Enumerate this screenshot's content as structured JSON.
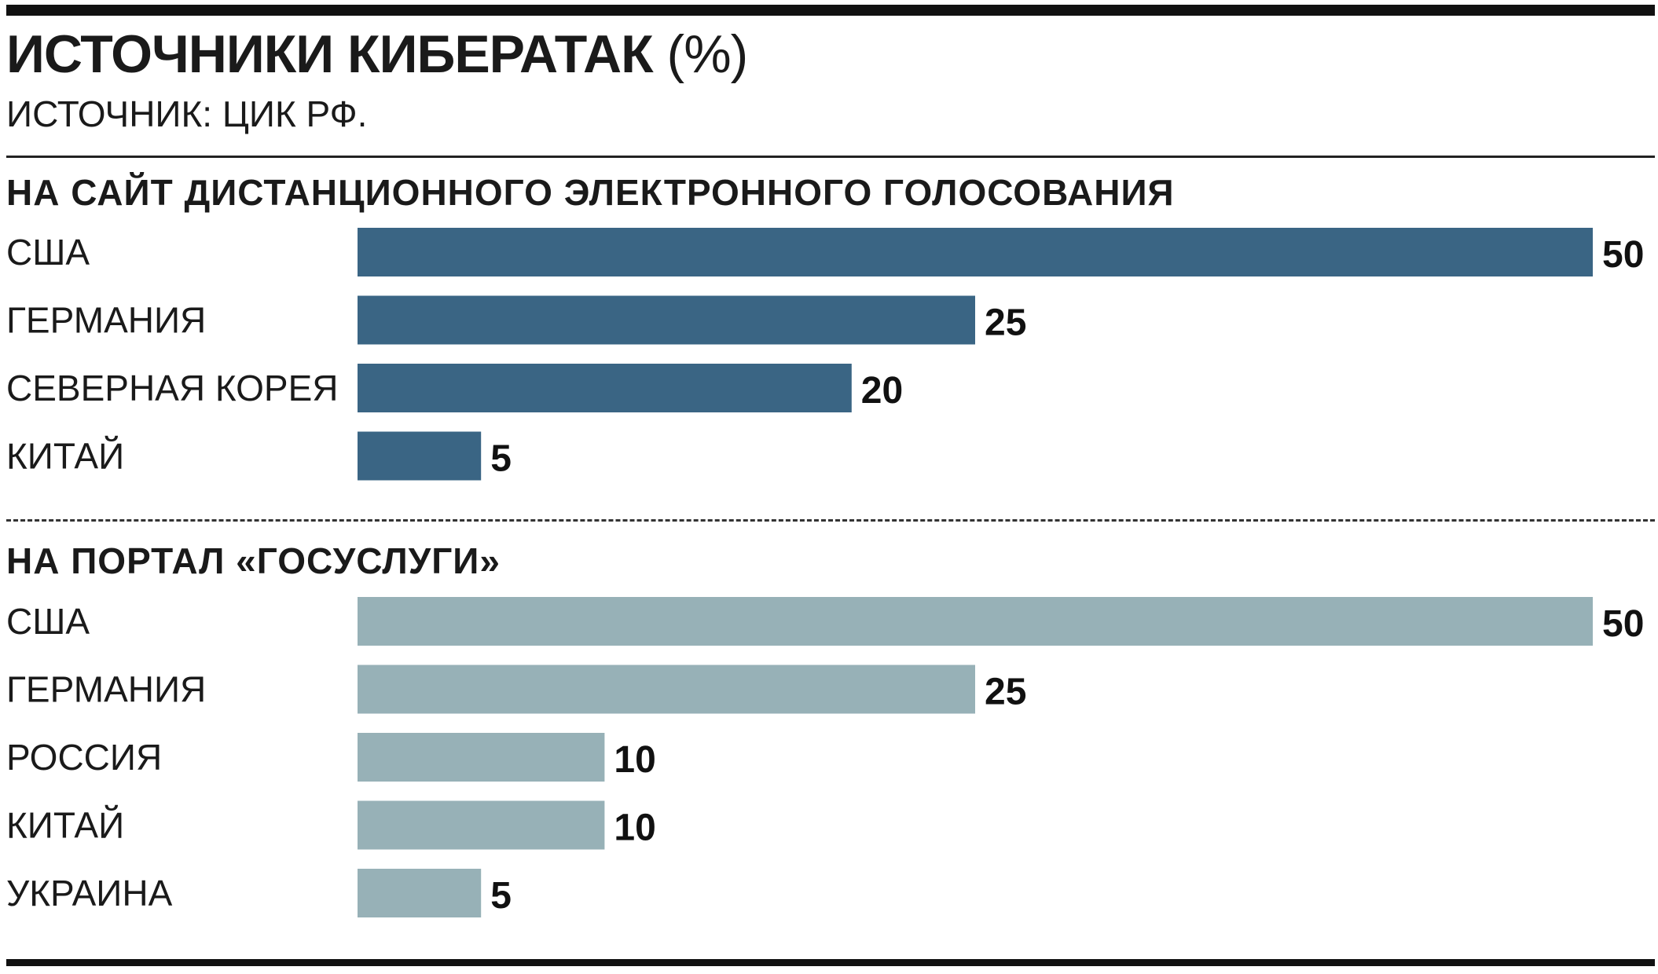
{
  "title": "ИСТОЧНИКИ КИБЕРАТАК",
  "title_unit": "(%)",
  "source": "ИСТОЧНИК: ЦИК РФ.",
  "chart_data": [
    {
      "type": "bar",
      "orientation": "horizontal",
      "title": "НА САЙТ ДИСТАНЦИОННОГО ЭЛЕКТРОННОГО ГОЛОСОВАНИЯ",
      "categories": [
        "США",
        "ГЕРМАНИЯ",
        "СЕВЕРНАЯ КОРЕЯ",
        "КИТАЙ"
      ],
      "values": [
        50,
        25,
        20,
        5
      ],
      "color": "#3a6584",
      "xlim": [
        0,
        50
      ],
      "grid": false,
      "legend": "none"
    },
    {
      "type": "bar",
      "orientation": "horizontal",
      "title": "НА ПОРТАЛ «ГОСУСЛУГИ»",
      "categories": [
        "США",
        "ГЕРМАНИЯ",
        "РОССИЯ",
        "КИТАЙ",
        "УКРАИНА"
      ],
      "values": [
        50,
        25,
        10,
        10,
        5
      ],
      "color": "#97b1b7",
      "xlim": [
        0,
        50
      ],
      "grid": false,
      "legend": "none"
    }
  ]
}
